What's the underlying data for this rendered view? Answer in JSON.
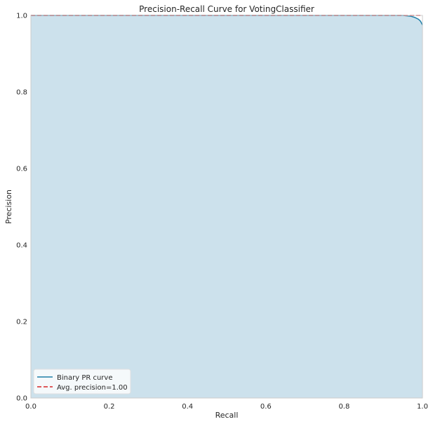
{
  "chart_data": {
    "type": "area",
    "title": "Precision-Recall Curve for VotingClassifier",
    "xlabel": "Recall",
    "ylabel": "Precision",
    "xlim": [
      0.0,
      1.0
    ],
    "ylim": [
      0.0,
      1.0
    ],
    "xticks": [
      "0.0",
      "0.2",
      "0.4",
      "0.6",
      "0.8",
      "1.0"
    ],
    "yticks": [
      "0.0",
      "0.2",
      "0.4",
      "0.6",
      "0.8",
      "1.0"
    ],
    "grid": false,
    "legend_position": "lower-left",
    "series": [
      {
        "name": "Binary PR curve",
        "color": "#1f7fa8",
        "fill_color": "#cce1ec",
        "recall": [
          0.0,
          0.95,
          0.97,
          0.98,
          0.99,
          0.995,
          1.0
        ],
        "precision": [
          1.0,
          1.0,
          0.998,
          0.995,
          0.99,
          0.985,
          0.975
        ]
      },
      {
        "name": "Avg. precision=1.00",
        "color": "#d62728",
        "style": "dashed",
        "value": 1.0
      }
    ]
  }
}
